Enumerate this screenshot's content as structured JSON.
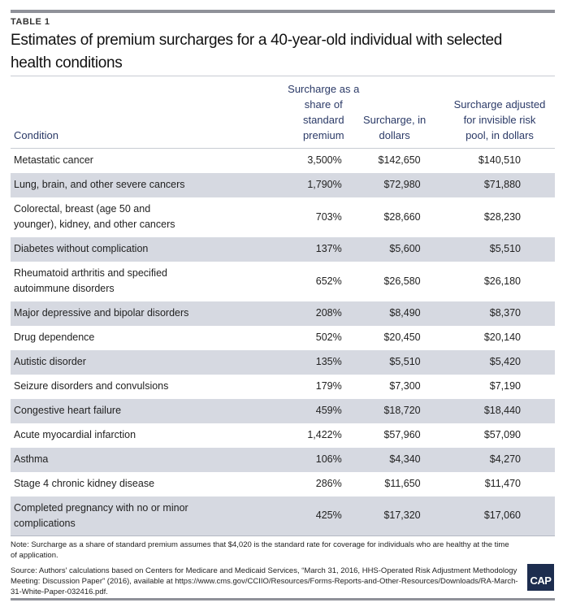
{
  "table_label": "TABLE 1",
  "title": "Estimates of premium surcharges for a 40-year-old individual with selected health conditions",
  "columns": [
    "Condition",
    "Surcharge as a share of standard premium",
    "Surcharge, in dollars",
    "Surcharge adjusted for invisible risk pool, in dollars"
  ],
  "rows": [
    {
      "condition": "Metastatic cancer",
      "share": "3,500%",
      "dollars": "$142,650",
      "adjusted": "$140,510"
    },
    {
      "condition": "Lung, brain, and other severe cancers",
      "share": "1,790%",
      "dollars": "$72,980",
      "adjusted": "$71,880"
    },
    {
      "condition": "Colorectal, breast (age 50 and younger), kidney, and other cancers",
      "share": "703%",
      "dollars": "$28,660",
      "adjusted": "$28,230"
    },
    {
      "condition": "Diabetes without complication",
      "share": "137%",
      "dollars": "$5,600",
      "adjusted": "$5,510"
    },
    {
      "condition": "Rheumatoid arthritis and specified autoimmune disorders",
      "share": "652%",
      "dollars": "$26,580",
      "adjusted": "$26,180"
    },
    {
      "condition": "Major depressive and bipolar disorders",
      "share": "208%",
      "dollars": "$8,490",
      "adjusted": "$8,370"
    },
    {
      "condition": "Drug dependence",
      "share": "502%",
      "dollars": "$20,450",
      "adjusted": "$20,140"
    },
    {
      "condition": "Autistic disorder",
      "share": "135%",
      "dollars": "$5,510",
      "adjusted": "$5,420"
    },
    {
      "condition": "Seizure disorders and convulsions",
      "share": "179%",
      "dollars": "$7,300",
      "adjusted": "$7,190"
    },
    {
      "condition": "Congestive heart failure",
      "share": "459%",
      "dollars": "$18,720",
      "adjusted": "$18,440"
    },
    {
      "condition": "Acute myocardial infarction",
      "share": "1,422%",
      "dollars": "$57,960",
      "adjusted": "$57,090"
    },
    {
      "condition": "Asthma",
      "share": "106%",
      "dollars": "$4,340",
      "adjusted": "$4,270"
    },
    {
      "condition": "Stage 4 chronic kidney disease",
      "share": "286%",
      "dollars": "$11,650",
      "adjusted": "$11,470"
    },
    {
      "condition": "Completed pregnancy with no or minor complications",
      "share": "425%",
      "dollars": "$17,320",
      "adjusted": "$17,060"
    }
  ],
  "note": "Note: Surcharge as a share of standard premium assumes that $4,020 is the standard rate for coverage for individuals who are healthy at the time of application.",
  "source": "Source: Authors' calculations based on Centers for Medicare and Medicaid Services, “March 31, 2016, HHS-Operated Risk Adjustment Methodology Meeting: Discussion Paper” (2016), available at https://www.cms.gov/CCIIO/Resources/Forms-Reports-and-Other-Resources/Downloads/RA-March-31-White-Paper-032416.pdf.",
  "logo": "CAP",
  "colors": {
    "header_text": "#2b3a67",
    "row_stripe": "#d6d9e1",
    "logo_bg": "#1d2d4f"
  }
}
